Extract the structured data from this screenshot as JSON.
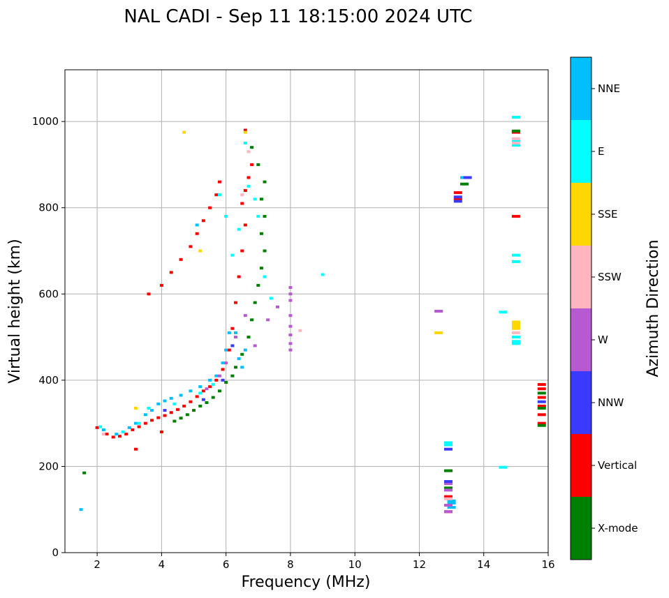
{
  "chart_data": {
    "type": "scatter",
    "title": "NAL CADI - Sep 11 18:15:00 2024 UTC",
    "xlabel": "Frequency (MHz)",
    "ylabel": "Virtual height (km)",
    "xlim": [
      1,
      16
    ],
    "ylim": [
      0,
      1120
    ],
    "xticks": [
      2,
      4,
      6,
      8,
      10,
      12,
      14,
      16
    ],
    "yticks": [
      0,
      200,
      400,
      600,
      800,
      1000
    ],
    "grid": true,
    "colorbar": {
      "label": "Azimuth Direction",
      "categories": [
        "X-mode",
        "Vertical",
        "NNW",
        "W",
        "SSW",
        "SSE",
        "E",
        "NNE"
      ],
      "colors": {
        "X-mode": "#008000",
        "Vertical": "#ff0000",
        "NNW": "#3a3aff",
        "W": "#b75ad2",
        "SSW": "#ffb6c1",
        "SSE": "#ffd700",
        "E": "#00ffff",
        "NNE": "#00bfff"
      }
    },
    "series": [
      {
        "name": "Vertical",
        "points": [
          [
            2.0,
            290
          ],
          [
            2.3,
            275
          ],
          [
            2.5,
            268
          ],
          [
            2.7,
            270
          ],
          [
            2.9,
            275
          ],
          [
            3.1,
            285
          ],
          [
            3.3,
            292
          ],
          [
            3.5,
            300
          ],
          [
            3.7,
            307
          ],
          [
            3.9,
            313
          ],
          [
            4.1,
            318
          ],
          [
            4.3,
            325
          ],
          [
            4.5,
            332
          ],
          [
            4.7,
            340
          ],
          [
            4.9,
            350
          ],
          [
            5.1,
            362
          ],
          [
            5.3,
            375
          ],
          [
            5.5,
            385
          ],
          [
            5.7,
            400
          ],
          [
            5.9,
            425
          ],
          [
            6.1,
            470
          ],
          [
            6.2,
            520
          ],
          [
            6.3,
            580
          ],
          [
            6.4,
            640
          ],
          [
            6.5,
            700
          ],
          [
            6.6,
            760
          ],
          [
            6.5,
            810
          ],
          [
            6.6,
            840
          ],
          [
            6.7,
            870
          ],
          [
            6.8,
            900
          ],
          [
            6.6,
            980
          ],
          [
            3.6,
            600
          ],
          [
            4.0,
            620
          ],
          [
            4.3,
            650
          ],
          [
            4.6,
            680
          ],
          [
            4.9,
            710
          ],
          [
            5.1,
            740
          ],
          [
            5.3,
            770
          ],
          [
            5.5,
            800
          ],
          [
            5.7,
            830
          ],
          [
            5.8,
            860
          ],
          [
            3.2,
            240
          ],
          [
            4.0,
            280
          ],
          [
            13.2,
            820
          ],
          [
            13.2,
            835
          ],
          [
            15.0,
            780
          ],
          [
            15.0,
            975
          ],
          [
            15.8,
            300
          ],
          [
            15.8,
            320
          ],
          [
            15.8,
            340
          ],
          [
            15.8,
            360
          ],
          [
            15.8,
            380
          ],
          [
            15.8,
            390
          ],
          [
            12.9,
            95
          ],
          [
            12.9,
            130
          ]
        ]
      },
      {
        "name": "X-mode",
        "points": [
          [
            4.4,
            305
          ],
          [
            4.6,
            312
          ],
          [
            4.8,
            320
          ],
          [
            5.0,
            330
          ],
          [
            5.2,
            340
          ],
          [
            5.4,
            348
          ],
          [
            5.6,
            360
          ],
          [
            5.8,
            375
          ],
          [
            6.0,
            395
          ],
          [
            6.2,
            410
          ],
          [
            6.3,
            430
          ],
          [
            6.5,
            460
          ],
          [
            6.7,
            500
          ],
          [
            6.8,
            540
          ],
          [
            6.9,
            580
          ],
          [
            7.0,
            620
          ],
          [
            7.1,
            660
          ],
          [
            7.2,
            700
          ],
          [
            7.1,
            740
          ],
          [
            7.2,
            780
          ],
          [
            7.1,
            820
          ],
          [
            7.2,
            860
          ],
          [
            7.0,
            900
          ],
          [
            6.8,
            940
          ],
          [
            15.8,
            295
          ],
          [
            15.8,
            335
          ],
          [
            15.8,
            370
          ],
          [
            13.4,
            855
          ],
          [
            15.0,
            978
          ],
          [
            12.9,
            150
          ],
          [
            12.9,
            190
          ],
          [
            1.6,
            185
          ]
        ]
      },
      {
        "name": "NNE",
        "points": [
          [
            1.5,
            100
          ],
          [
            2.2,
            285
          ],
          [
            2.6,
            275
          ],
          [
            3.0,
            290
          ],
          [
            3.2,
            300
          ],
          [
            3.5,
            320
          ],
          [
            3.7,
            330
          ],
          [
            3.9,
            345
          ],
          [
            4.1,
            352
          ],
          [
            4.3,
            358
          ],
          [
            4.6,
            365
          ],
          [
            4.9,
            375
          ],
          [
            5.2,
            385
          ],
          [
            5.5,
            400
          ],
          [
            5.7,
            410
          ],
          [
            5.9,
            440
          ],
          [
            6.0,
            470
          ],
          [
            6.3,
            510
          ],
          [
            6.4,
            450
          ],
          [
            6.6,
            470
          ],
          [
            6.5,
            430
          ],
          [
            5.1,
            760
          ],
          [
            6.1,
            510
          ],
          [
            13.0,
            105
          ],
          [
            13.0,
            115
          ],
          [
            13.0,
            120
          ],
          [
            13.4,
            870
          ]
        ]
      },
      {
        "name": "E",
        "points": [
          [
            2.1,
            292
          ],
          [
            2.8,
            280
          ],
          [
            3.3,
            300
          ],
          [
            3.6,
            335
          ],
          [
            4.4,
            345
          ],
          [
            5.2,
            370
          ],
          [
            5.6,
            390
          ],
          [
            5.8,
            830
          ],
          [
            6.0,
            780
          ],
          [
            6.2,
            690
          ],
          [
            6.4,
            750
          ],
          [
            6.6,
            950
          ],
          [
            6.7,
            850
          ],
          [
            6.9,
            820
          ],
          [
            7.0,
            780
          ],
          [
            7.2,
            640
          ],
          [
            7.4,
            590
          ],
          [
            9.0,
            645
          ],
          [
            14.6,
            198
          ],
          [
            14.6,
            558
          ],
          [
            15.0,
            1010
          ],
          [
            15.0,
            955
          ],
          [
            15.0,
            945
          ],
          [
            15.0,
            690
          ],
          [
            15.0,
            675
          ],
          [
            15.0,
            500
          ],
          [
            15.0,
            490
          ],
          [
            15.0,
            485
          ],
          [
            12.9,
            250
          ],
          [
            12.9,
            255
          ]
        ]
      },
      {
        "name": "W",
        "points": [
          [
            5.4,
            380
          ],
          [
            5.8,
            410
          ],
          [
            6.0,
            440
          ],
          [
            6.3,
            500
          ],
          [
            6.6,
            550
          ],
          [
            6.9,
            480
          ],
          [
            7.3,
            540
          ],
          [
            7.6,
            570
          ],
          [
            8.0,
            615
          ],
          [
            8.0,
            600
          ],
          [
            8.0,
            585
          ],
          [
            8.0,
            550
          ],
          [
            8.0,
            525
          ],
          [
            8.0,
            505
          ],
          [
            8.0,
            485
          ],
          [
            8.0,
            470
          ],
          [
            12.6,
            560
          ],
          [
            12.9,
            95
          ],
          [
            12.9,
            110
          ],
          [
            12.9,
            145
          ],
          [
            12.9,
            160
          ]
        ]
      },
      {
        "name": "SSW",
        "points": [
          [
            2.2,
            275
          ],
          [
            6.5,
            830
          ],
          [
            6.7,
            930
          ],
          [
            8.3,
            515
          ],
          [
            15.0,
            960
          ],
          [
            15.0,
            950
          ],
          [
            15.0,
            510
          ],
          [
            12.9,
            125
          ]
        ]
      },
      {
        "name": "SSE",
        "points": [
          [
            3.2,
            335
          ],
          [
            4.7,
            975
          ],
          [
            5.2,
            700
          ],
          [
            6.6,
            975
          ],
          [
            12.6,
            510
          ],
          [
            15.0,
            520
          ],
          [
            15.0,
            525
          ],
          [
            15.0,
            530
          ],
          [
            15.0,
            535
          ]
        ]
      },
      {
        "name": "NNW",
        "points": [
          [
            4.1,
            330
          ],
          [
            5.3,
            355
          ],
          [
            5.9,
            400
          ],
          [
            6.2,
            480
          ],
          [
            12.9,
            165
          ],
          [
            12.9,
            240
          ],
          [
            13.2,
            815
          ],
          [
            13.2,
            825
          ],
          [
            13.5,
            870
          ],
          [
            15.8,
            350
          ]
        ]
      }
    ]
  }
}
